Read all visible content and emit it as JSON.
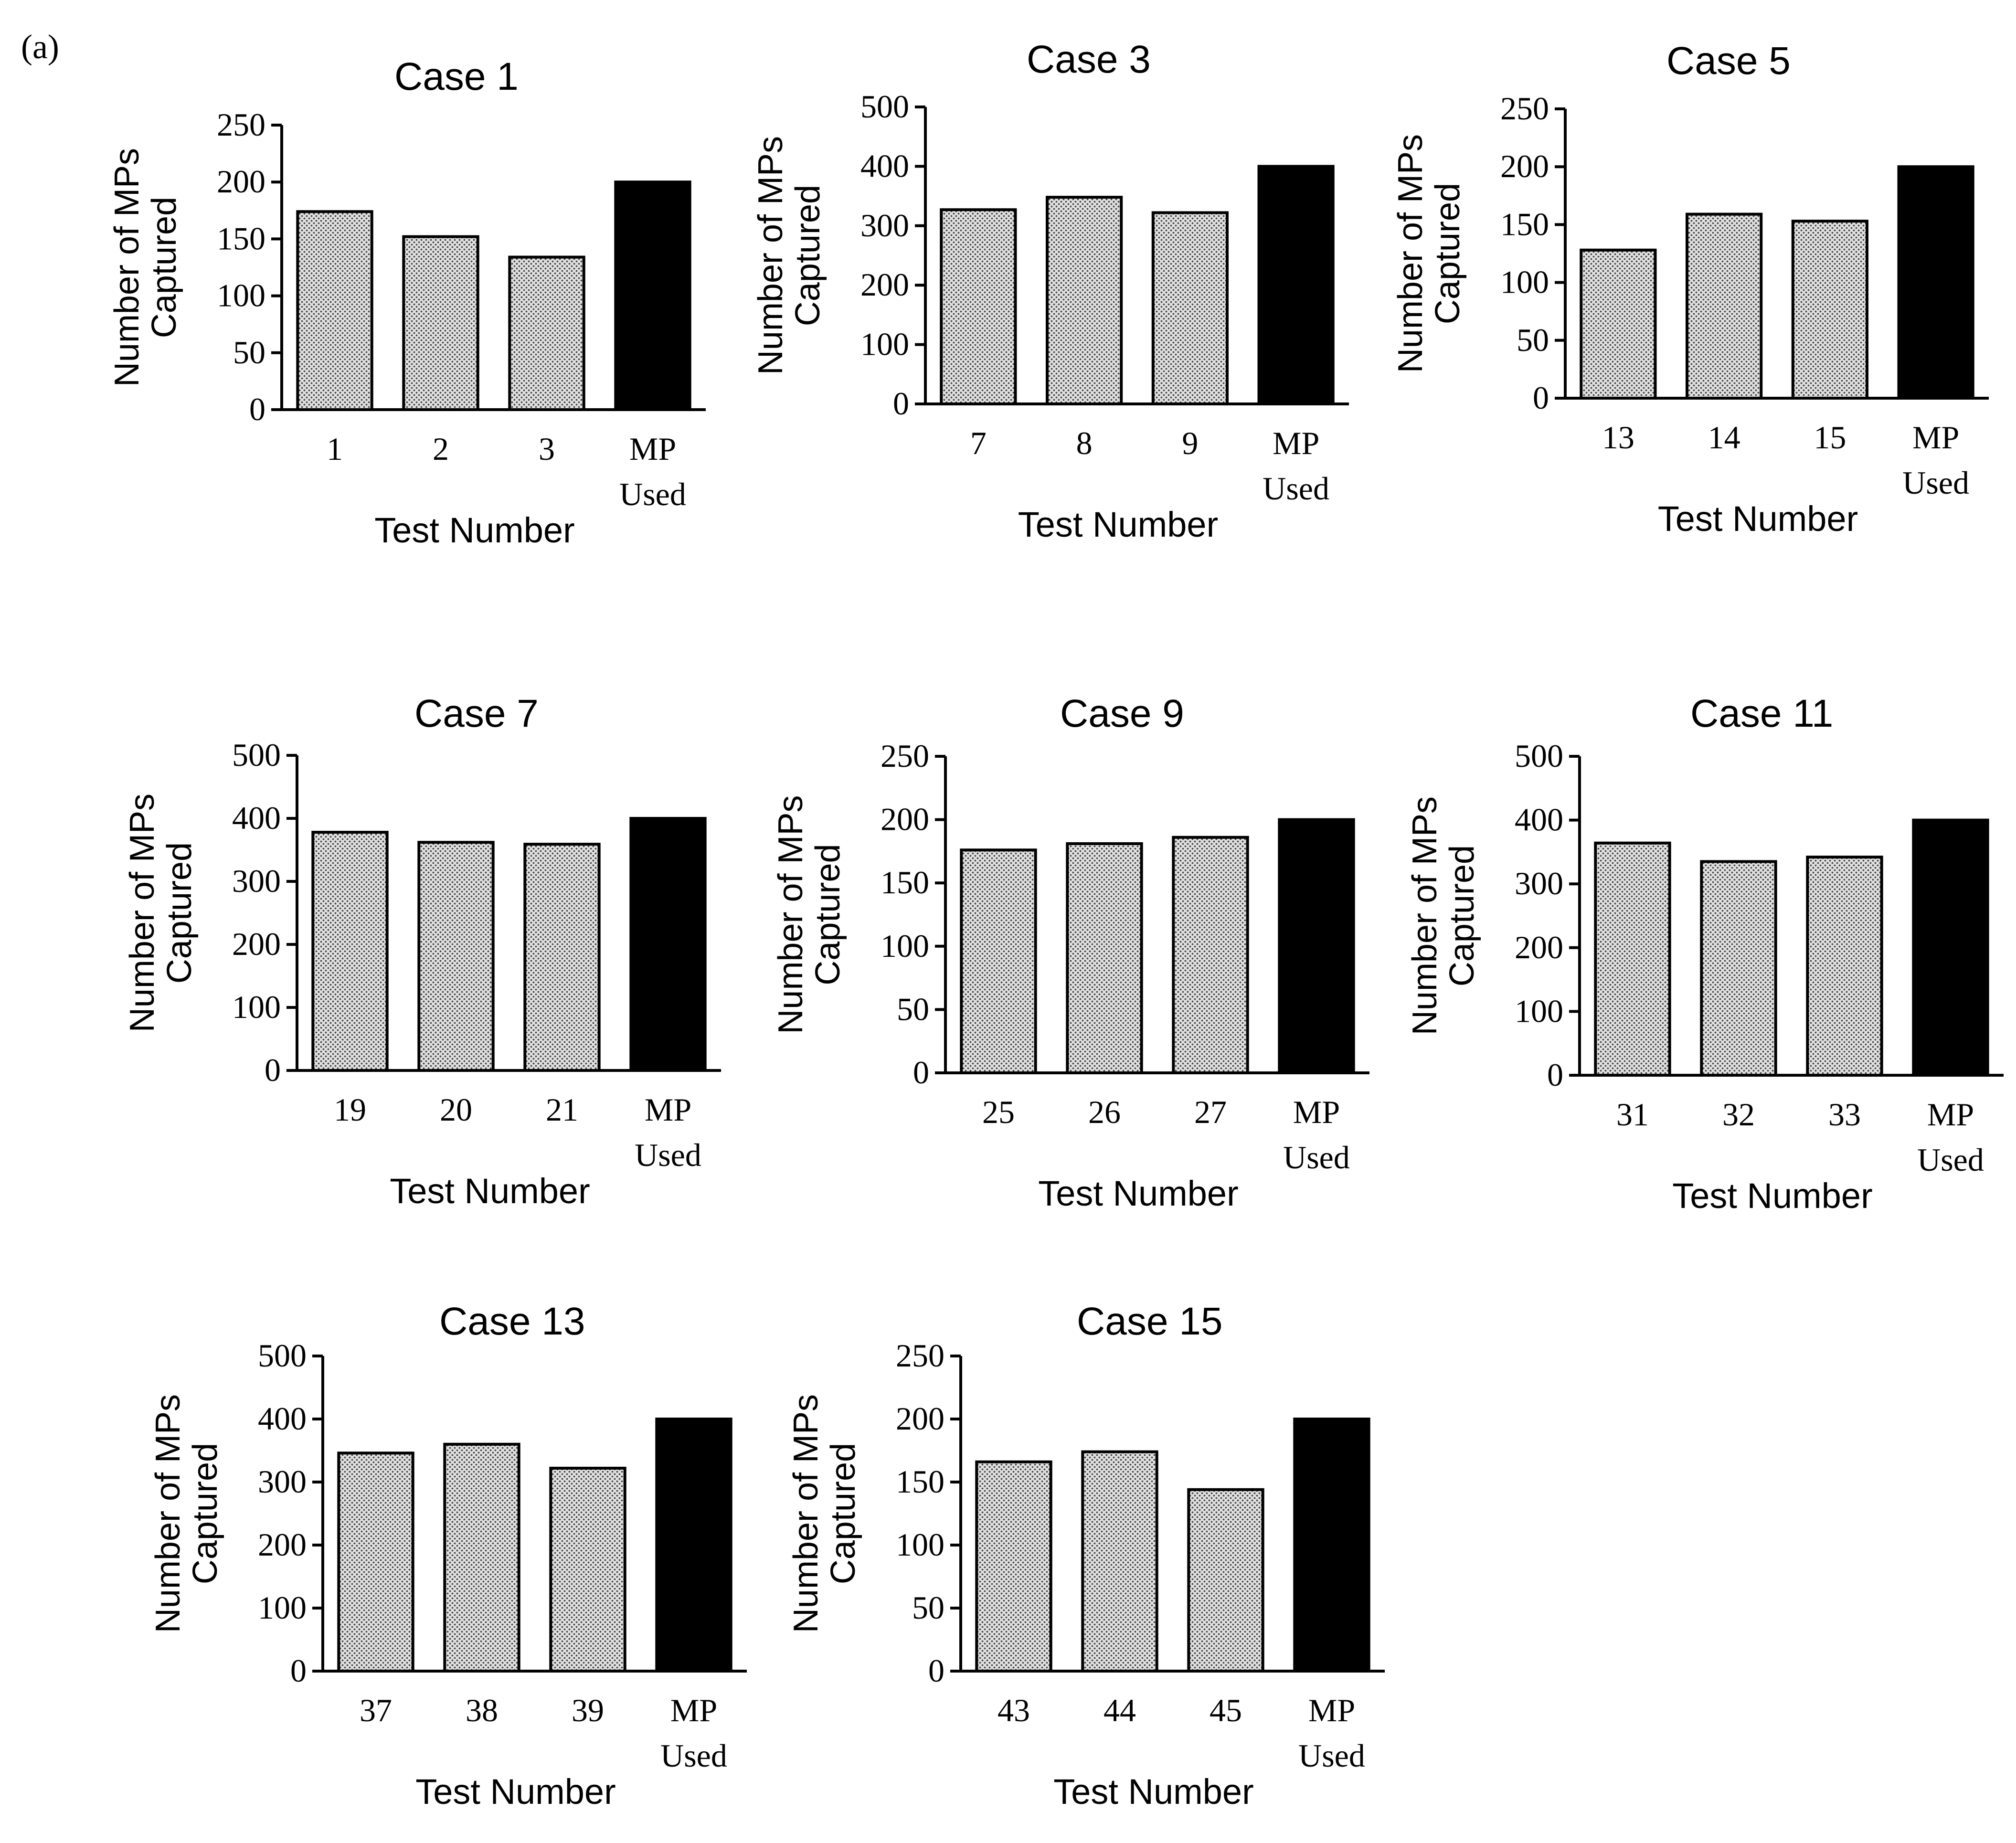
{
  "figure_label": "(a)",
  "style": {
    "test_bar_fill": "#e0e0e0",
    "test_bar_dots": "#444444",
    "mp_bar_fill": "#000000"
  },
  "chart_data": [
    {
      "type": "bar",
      "title": "Case 1",
      "xlabel": "Test Number",
      "ylabel": [
        "Number of MPs",
        "Captured"
      ],
      "categories": [
        "1",
        "2",
        "3",
        "MP Used"
      ],
      "values": [
        174,
        152,
        134,
        200
      ],
      "ylim": [
        0,
        250
      ],
      "yticks": [
        0,
        50,
        100,
        150,
        200,
        250
      ],
      "grid": false
    },
    {
      "type": "bar",
      "title": "Case 3",
      "xlabel": "Test Number",
      "ylabel": [
        "Number of MPs",
        "Captured"
      ],
      "categories": [
        "7",
        "8",
        "9",
        "MP Used"
      ],
      "values": [
        327,
        348,
        322,
        400
      ],
      "ylim": [
        0,
        500
      ],
      "yticks": [
        0,
        100,
        200,
        300,
        400,
        500
      ],
      "grid": false
    },
    {
      "type": "bar",
      "title": "Case 5",
      "xlabel": "Test Number",
      "ylabel": [
        "Number of MPs",
        "Captured"
      ],
      "categories": [
        "13",
        "14",
        "15",
        "MP Used"
      ],
      "values": [
        128,
        159,
        153,
        200
      ],
      "ylim": [
        0,
        250
      ],
      "yticks": [
        0,
        50,
        100,
        150,
        200,
        250
      ],
      "grid": false
    },
    {
      "type": "bar",
      "title": "Case 7",
      "xlabel": "Test Number",
      "ylabel": [
        "Number of MPs",
        "Captured"
      ],
      "categories": [
        "19",
        "20",
        "21",
        "MP Used"
      ],
      "values": [
        378,
        362,
        359,
        400
      ],
      "ylim": [
        0,
        500
      ],
      "yticks": [
        0,
        100,
        200,
        300,
        400,
        500
      ],
      "grid": false
    },
    {
      "type": "bar",
      "title": "Case 9",
      "xlabel": "Test Number",
      "ylabel": [
        "Number of MPs",
        "Captured"
      ],
      "categories": [
        "25",
        "26",
        "27",
        "MP Used"
      ],
      "values": [
        176,
        181,
        186,
        200
      ],
      "ylim": [
        0,
        250
      ],
      "yticks": [
        0,
        50,
        100,
        150,
        200,
        250
      ],
      "grid": false
    },
    {
      "type": "bar",
      "title": "Case 11",
      "xlabel": "Test Number",
      "ylabel": [
        "Number of MPs",
        "Captured"
      ],
      "categories": [
        "31",
        "32",
        "33",
        "MP Used"
      ],
      "values": [
        364,
        335,
        342,
        400
      ],
      "ylim": [
        0,
        500
      ],
      "yticks": [
        0,
        100,
        200,
        300,
        400,
        500
      ],
      "grid": false
    },
    {
      "type": "bar",
      "title": "Case 13",
      "xlabel": "Test Number",
      "ylabel": [
        "Number of MPs",
        "Captured"
      ],
      "categories": [
        "37",
        "38",
        "39",
        "MP Used"
      ],
      "values": [
        346,
        360,
        322,
        400
      ],
      "ylim": [
        0,
        500
      ],
      "yticks": [
        0,
        100,
        200,
        300,
        400,
        500
      ],
      "grid": false
    },
    {
      "type": "bar",
      "title": "Case 15",
      "xlabel": "Test Number",
      "ylabel": [
        "Number of MPs",
        "Captured"
      ],
      "categories": [
        "43",
        "44",
        "45",
        "MP Used"
      ],
      "values": [
        166,
        174,
        144,
        200
      ],
      "ylim": [
        0,
        250
      ],
      "yticks": [
        0,
        50,
        100,
        150,
        200,
        250
      ],
      "grid": false
    }
  ]
}
